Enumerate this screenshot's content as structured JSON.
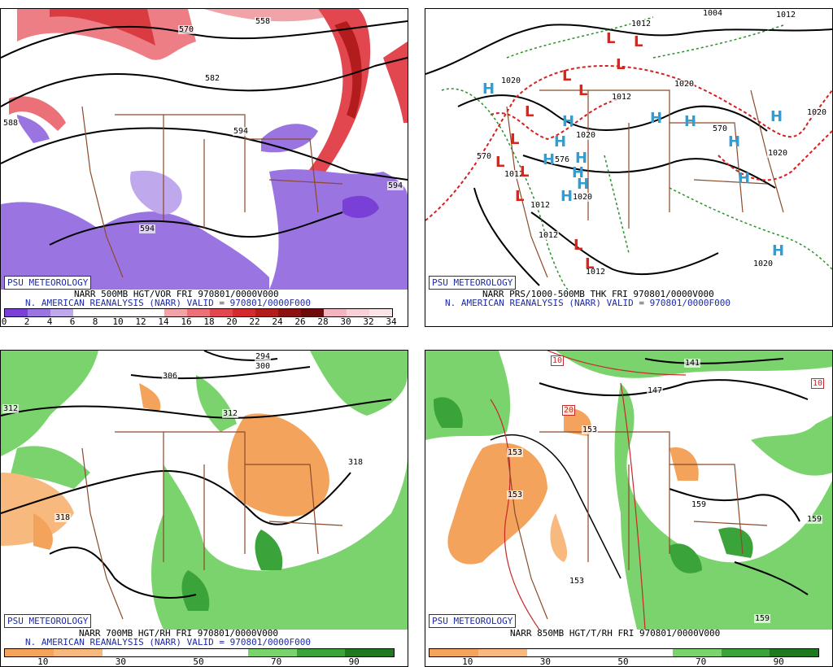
{
  "panels": [
    {
      "brand": "PSU METEOROLOGY",
      "caption1": "NARR 500MB HGT/VOR FRI 970801/0000V000",
      "caption2": "N. AMERICAN REANALYSIS (NARR) VALID = 970801/0000F000",
      "contour_labels": [
        "558",
        "570",
        "582",
        "594",
        "594",
        "594",
        "588"
      ],
      "colorbar": {
        "colors": [
          "#7a3fd6",
          "#9a74e0",
          "#bfa8ec",
          "#ffffff",
          "#ffffff",
          "#ffffff",
          "#ffffff",
          "#f2a3a8",
          "#ec7078",
          "#e2474f",
          "#d42a2f",
          "#b31c1c",
          "#8e1010",
          "#6e0a0a",
          "#f2b5c0",
          "#f7d0d8",
          "#fbe3e8"
        ],
        "ticks": [
          "0",
          "2",
          "4",
          "6",
          "8",
          "10",
          "12",
          "14",
          "16",
          "18",
          "20",
          "22",
          "24",
          "26",
          "28",
          "30",
          "32",
          "34"
        ]
      }
    },
    {
      "brand": "PSU METEOROLOGY",
      "caption1": "NARR PRS/1000-500MB THK FRI 970801/0000V000",
      "caption2": "N. AMERICAN REANALYSIS (NARR) VALID = 970801/0000F000",
      "contour_labels": [
        "1004",
        "1012",
        "1012",
        "1020",
        "1012",
        "1020",
        "1020",
        "1020",
        "1012",
        "1012",
        "1012",
        "1020",
        "1020",
        "570",
        "570",
        "576",
        "1012",
        "1020"
      ],
      "highs": 14,
      "lows": 12,
      "high_symbol": "H",
      "low_symbol": "L"
    },
    {
      "brand": "PSU METEOROLOGY",
      "caption1": "NARR 700MB HGT/RH FRI 970801/0000V000",
      "caption2": "N. AMERICAN REANALYSIS (NARR) VALID = 970801/0000F000",
      "contour_labels": [
        "294",
        "300",
        "306",
        "312",
        "312",
        "318",
        "318"
      ],
      "colorbar": {
        "colors": [
          "#f4a35c",
          "#f7b97e",
          "#ffffff",
          "#ffffff",
          "#ffffff",
          "#7ad36d",
          "#3aa33a",
          "#1f7a1f"
        ],
        "ticks": [
          "10",
          "30",
          "50",
          "70",
          "90"
        ]
      }
    },
    {
      "brand": "PSU METEOROLOGY",
      "caption1": "NARR 850MB HGT/T/RH FRI 970801/0000V000",
      "caption2": "",
      "contour_labels": [
        "141",
        "147",
        "153",
        "153",
        "153",
        "153",
        "159",
        "159",
        "159",
        "10",
        "10",
        "20"
      ],
      "colorbar": {
        "colors": [
          "#f4a35c",
          "#f7b97e",
          "#ffffff",
          "#ffffff",
          "#ffffff",
          "#7ad36d",
          "#3aa33a",
          "#1f7a1f"
        ],
        "ticks": [
          "10",
          "30",
          "50",
          "70",
          "90"
        ]
      }
    }
  ]
}
